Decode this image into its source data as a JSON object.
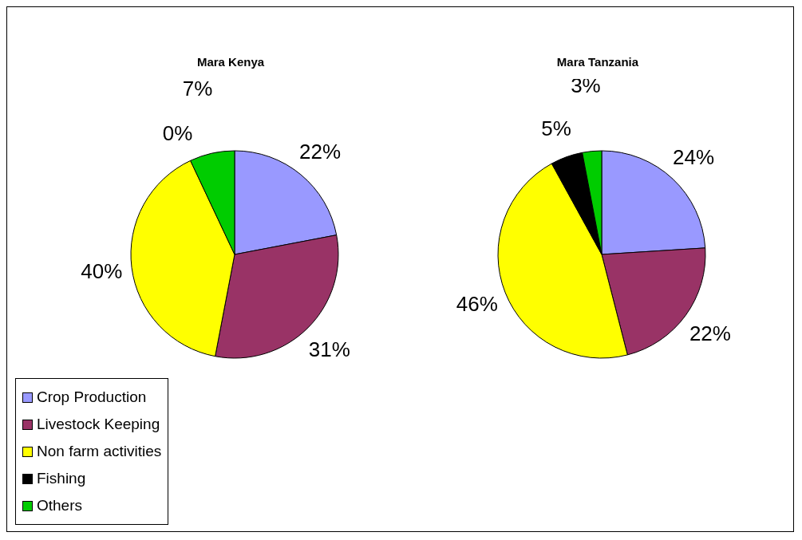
{
  "chart_data": [
    {
      "type": "pie",
      "title": "Mara Kenya",
      "categories": [
        "Crop Production",
        "Livestock Keeping",
        "Non farm activities",
        "Fishing",
        "Others"
      ],
      "values": [
        22,
        31,
        40,
        0,
        7
      ],
      "value_labels": [
        "22%",
        "31%",
        "40%",
        "0%",
        "7%"
      ],
      "colors": [
        "#9999ff",
        "#993366",
        "#ffff00",
        "#000000",
        "#00cc00"
      ],
      "legend": "bottom left"
    },
    {
      "type": "pie",
      "title": "Mara Tanzania",
      "categories": [
        null,
        null,
        null,
        null,
        null
      ],
      "values": [
        24,
        22,
        46,
        5,
        3
      ],
      "value_labels": [
        "24%",
        "22%",
        "46%",
        "5%",
        "3%"
      ],
      "colors": [
        "#9999ff",
        "#993366",
        "#ffff00",
        "#000000",
        "#00cc00"
      ]
    }
  ]
}
